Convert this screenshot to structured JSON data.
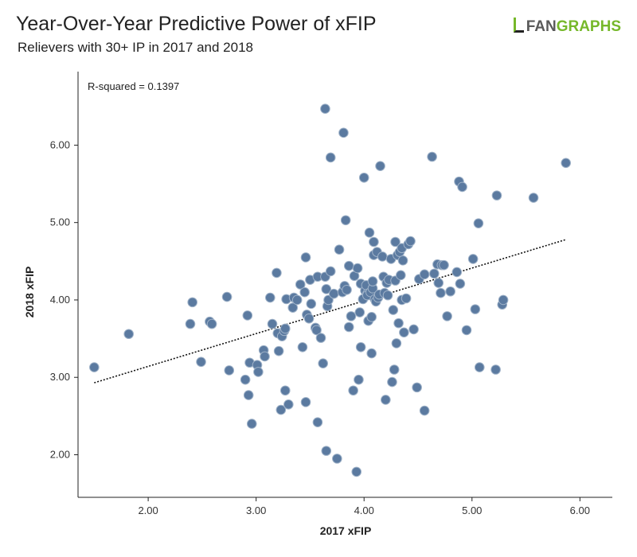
{
  "header": {
    "title": "Year-Over-Year Predictive Power of xFIP",
    "subtitle": "Relievers with 30+ IP in 2017 and 2018",
    "logo_part1": "FAN",
    "logo_part2": "GRAPHS"
  },
  "colors": {
    "point_fill": "#5b7aa0",
    "point_stroke": "#9fb2c8",
    "trendline": "#111111",
    "brand_green": "#76b82a"
  },
  "chart_data": {
    "type": "scatter",
    "title": "Year-Over-Year Predictive Power of xFIP",
    "subtitle": "Relievers with 30+ IP in 2017 and 2018",
    "xlabel": "2017 xFIP",
    "ylabel": "2018 xFIP",
    "xlim": [
      1.35,
      6.3
    ],
    "ylim": [
      1.45,
      6.95
    ],
    "xticks": [
      2.0,
      3.0,
      4.0,
      5.0,
      6.0
    ],
    "xtick_labels": [
      "2.00",
      "3.00",
      "4.00",
      "5.00",
      "6.00"
    ],
    "yticks": [
      2.0,
      3.0,
      4.0,
      5.0,
      6.0
    ],
    "ytick_labels": [
      "2.00",
      "3.00",
      "4.00",
      "5.00",
      "6.00"
    ],
    "grid": false,
    "annotation": "R-squared = 0.1397",
    "trendline": {
      "style": "dotted",
      "x": [
        1.5,
        5.87
      ],
      "y": [
        2.93,
        4.78
      ]
    },
    "points": [
      [
        1.5,
        3.13
      ],
      [
        1.82,
        3.56
      ],
      [
        2.39,
        3.69
      ],
      [
        2.41,
        3.97
      ],
      [
        2.49,
        3.2
      ],
      [
        2.57,
        3.72
      ],
      [
        2.59,
        3.69
      ],
      [
        2.73,
        4.04
      ],
      [
        2.75,
        3.09
      ],
      [
        2.9,
        2.97
      ],
      [
        2.92,
        3.8
      ],
      [
        2.93,
        2.77
      ],
      [
        2.94,
        3.19
      ],
      [
        2.96,
        2.4
      ],
      [
        3.01,
        3.16
      ],
      [
        3.02,
        3.07
      ],
      [
        3.07,
        3.35
      ],
      [
        3.08,
        3.27
      ],
      [
        3.13,
        4.03
      ],
      [
        3.15,
        3.69
      ],
      [
        3.19,
        4.35
      ],
      [
        3.2,
        3.57
      ],
      [
        3.21,
        3.34
      ],
      [
        3.23,
        2.58
      ],
      [
        3.24,
        3.53
      ],
      [
        3.26,
        3.6
      ],
      [
        3.27,
        3.63
      ],
      [
        3.27,
        2.83
      ],
      [
        3.28,
        4.01
      ],
      [
        3.3,
        2.65
      ],
      [
        3.34,
        3.9
      ],
      [
        3.35,
        4.03
      ],
      [
        3.38,
        4.0
      ],
      [
        3.41,
        4.2
      ],
      [
        3.43,
        3.39
      ],
      [
        3.45,
        4.1
      ],
      [
        3.46,
        4.55
      ],
      [
        3.46,
        2.68
      ],
      [
        3.47,
        3.81
      ],
      [
        3.49,
        3.76
      ],
      [
        3.5,
        4.26
      ],
      [
        3.51,
        3.95
      ],
      [
        3.55,
        3.64
      ],
      [
        3.56,
        3.61
      ],
      [
        3.57,
        2.42
      ],
      [
        3.57,
        4.3
      ],
      [
        3.6,
        3.51
      ],
      [
        3.62,
        3.18
      ],
      [
        3.64,
        6.47
      ],
      [
        3.64,
        4.3
      ],
      [
        3.65,
        4.14
      ],
      [
        3.65,
        2.05
      ],
      [
        3.66,
        3.92
      ],
      [
        3.67,
        4.0
      ],
      [
        3.69,
        5.84
      ],
      [
        3.69,
        4.37
      ],
      [
        3.72,
        4.08
      ],
      [
        3.75,
        1.95
      ],
      [
        3.77,
        4.65
      ],
      [
        3.8,
        4.1
      ],
      [
        3.81,
        6.16
      ],
      [
        3.82,
        4.18
      ],
      [
        3.83,
        5.03
      ],
      [
        3.84,
        4.13
      ],
      [
        3.86,
        3.65
      ],
      [
        3.86,
        4.44
      ],
      [
        3.88,
        3.79
      ],
      [
        3.9,
        2.83
      ],
      [
        3.91,
        4.31
      ],
      [
        3.93,
        1.78
      ],
      [
        3.94,
        4.41
      ],
      [
        3.95,
        2.97
      ],
      [
        3.96,
        3.84
      ],
      [
        3.97,
        3.39
      ],
      [
        3.97,
        4.21
      ],
      [
        3.99,
        4.01
      ],
      [
        4.0,
        5.58
      ],
      [
        4.01,
        4.12
      ],
      [
        4.02,
        4.19
      ],
      [
        4.03,
        4.08
      ],
      [
        4.03,
        4.06
      ],
      [
        4.04,
        3.73
      ],
      [
        4.05,
        4.87
      ],
      [
        4.06,
        4.1
      ],
      [
        4.07,
        3.31
      ],
      [
        4.07,
        3.78
      ],
      [
        4.08,
        4.15
      ],
      [
        4.08,
        4.24
      ],
      [
        4.09,
        4.75
      ],
      [
        4.09,
        4.58
      ],
      [
        4.1,
        4.01
      ],
      [
        4.11,
        3.98
      ],
      [
        4.12,
        4.62
      ],
      [
        4.13,
        4.03
      ],
      [
        4.14,
        4.07
      ],
      [
        4.15,
        5.73
      ],
      [
        4.17,
        4.56
      ],
      [
        4.18,
        4.3
      ],
      [
        4.19,
        4.09
      ],
      [
        4.2,
        2.71
      ],
      [
        4.21,
        4.22
      ],
      [
        4.22,
        4.06
      ],
      [
        4.23,
        4.26
      ],
      [
        4.25,
        4.53
      ],
      [
        4.26,
        2.94
      ],
      [
        4.27,
        3.87
      ],
      [
        4.28,
        3.1
      ],
      [
        4.29,
        4.25
      ],
      [
        4.29,
        4.75
      ],
      [
        4.3,
        3.44
      ],
      [
        4.31,
        4.58
      ],
      [
        4.32,
        3.7
      ],
      [
        4.33,
        4.62
      ],
      [
        4.34,
        4.32
      ],
      [
        4.35,
        4.0
      ],
      [
        4.35,
        4.67
      ],
      [
        4.36,
        4.51
      ],
      [
        4.37,
        3.58
      ],
      [
        4.39,
        4.02
      ],
      [
        4.41,
        4.72
      ],
      [
        4.43,
        4.76
      ],
      [
        4.46,
        3.62
      ],
      [
        4.49,
        2.87
      ],
      [
        4.51,
        4.27
      ],
      [
        4.56,
        4.33
      ],
      [
        4.56,
        2.57
      ],
      [
        4.63,
        5.85
      ],
      [
        4.65,
        4.34
      ],
      [
        4.68,
        4.46
      ],
      [
        4.69,
        4.22
      ],
      [
        4.71,
        4.09
      ],
      [
        4.72,
        4.45
      ],
      [
        4.74,
        4.45
      ],
      [
        4.77,
        3.79
      ],
      [
        4.8,
        4.11
      ],
      [
        4.86,
        4.36
      ],
      [
        4.88,
        5.53
      ],
      [
        4.89,
        4.21
      ],
      [
        4.91,
        5.46
      ],
      [
        4.95,
        3.61
      ],
      [
        5.01,
        4.53
      ],
      [
        5.03,
        3.88
      ],
      [
        5.06,
        4.99
      ],
      [
        5.07,
        3.13
      ],
      [
        5.22,
        3.1
      ],
      [
        5.23,
        5.35
      ],
      [
        5.28,
        3.94
      ],
      [
        5.29,
        4.0
      ],
      [
        5.57,
        5.32
      ],
      [
        5.87,
        5.77
      ]
    ]
  }
}
